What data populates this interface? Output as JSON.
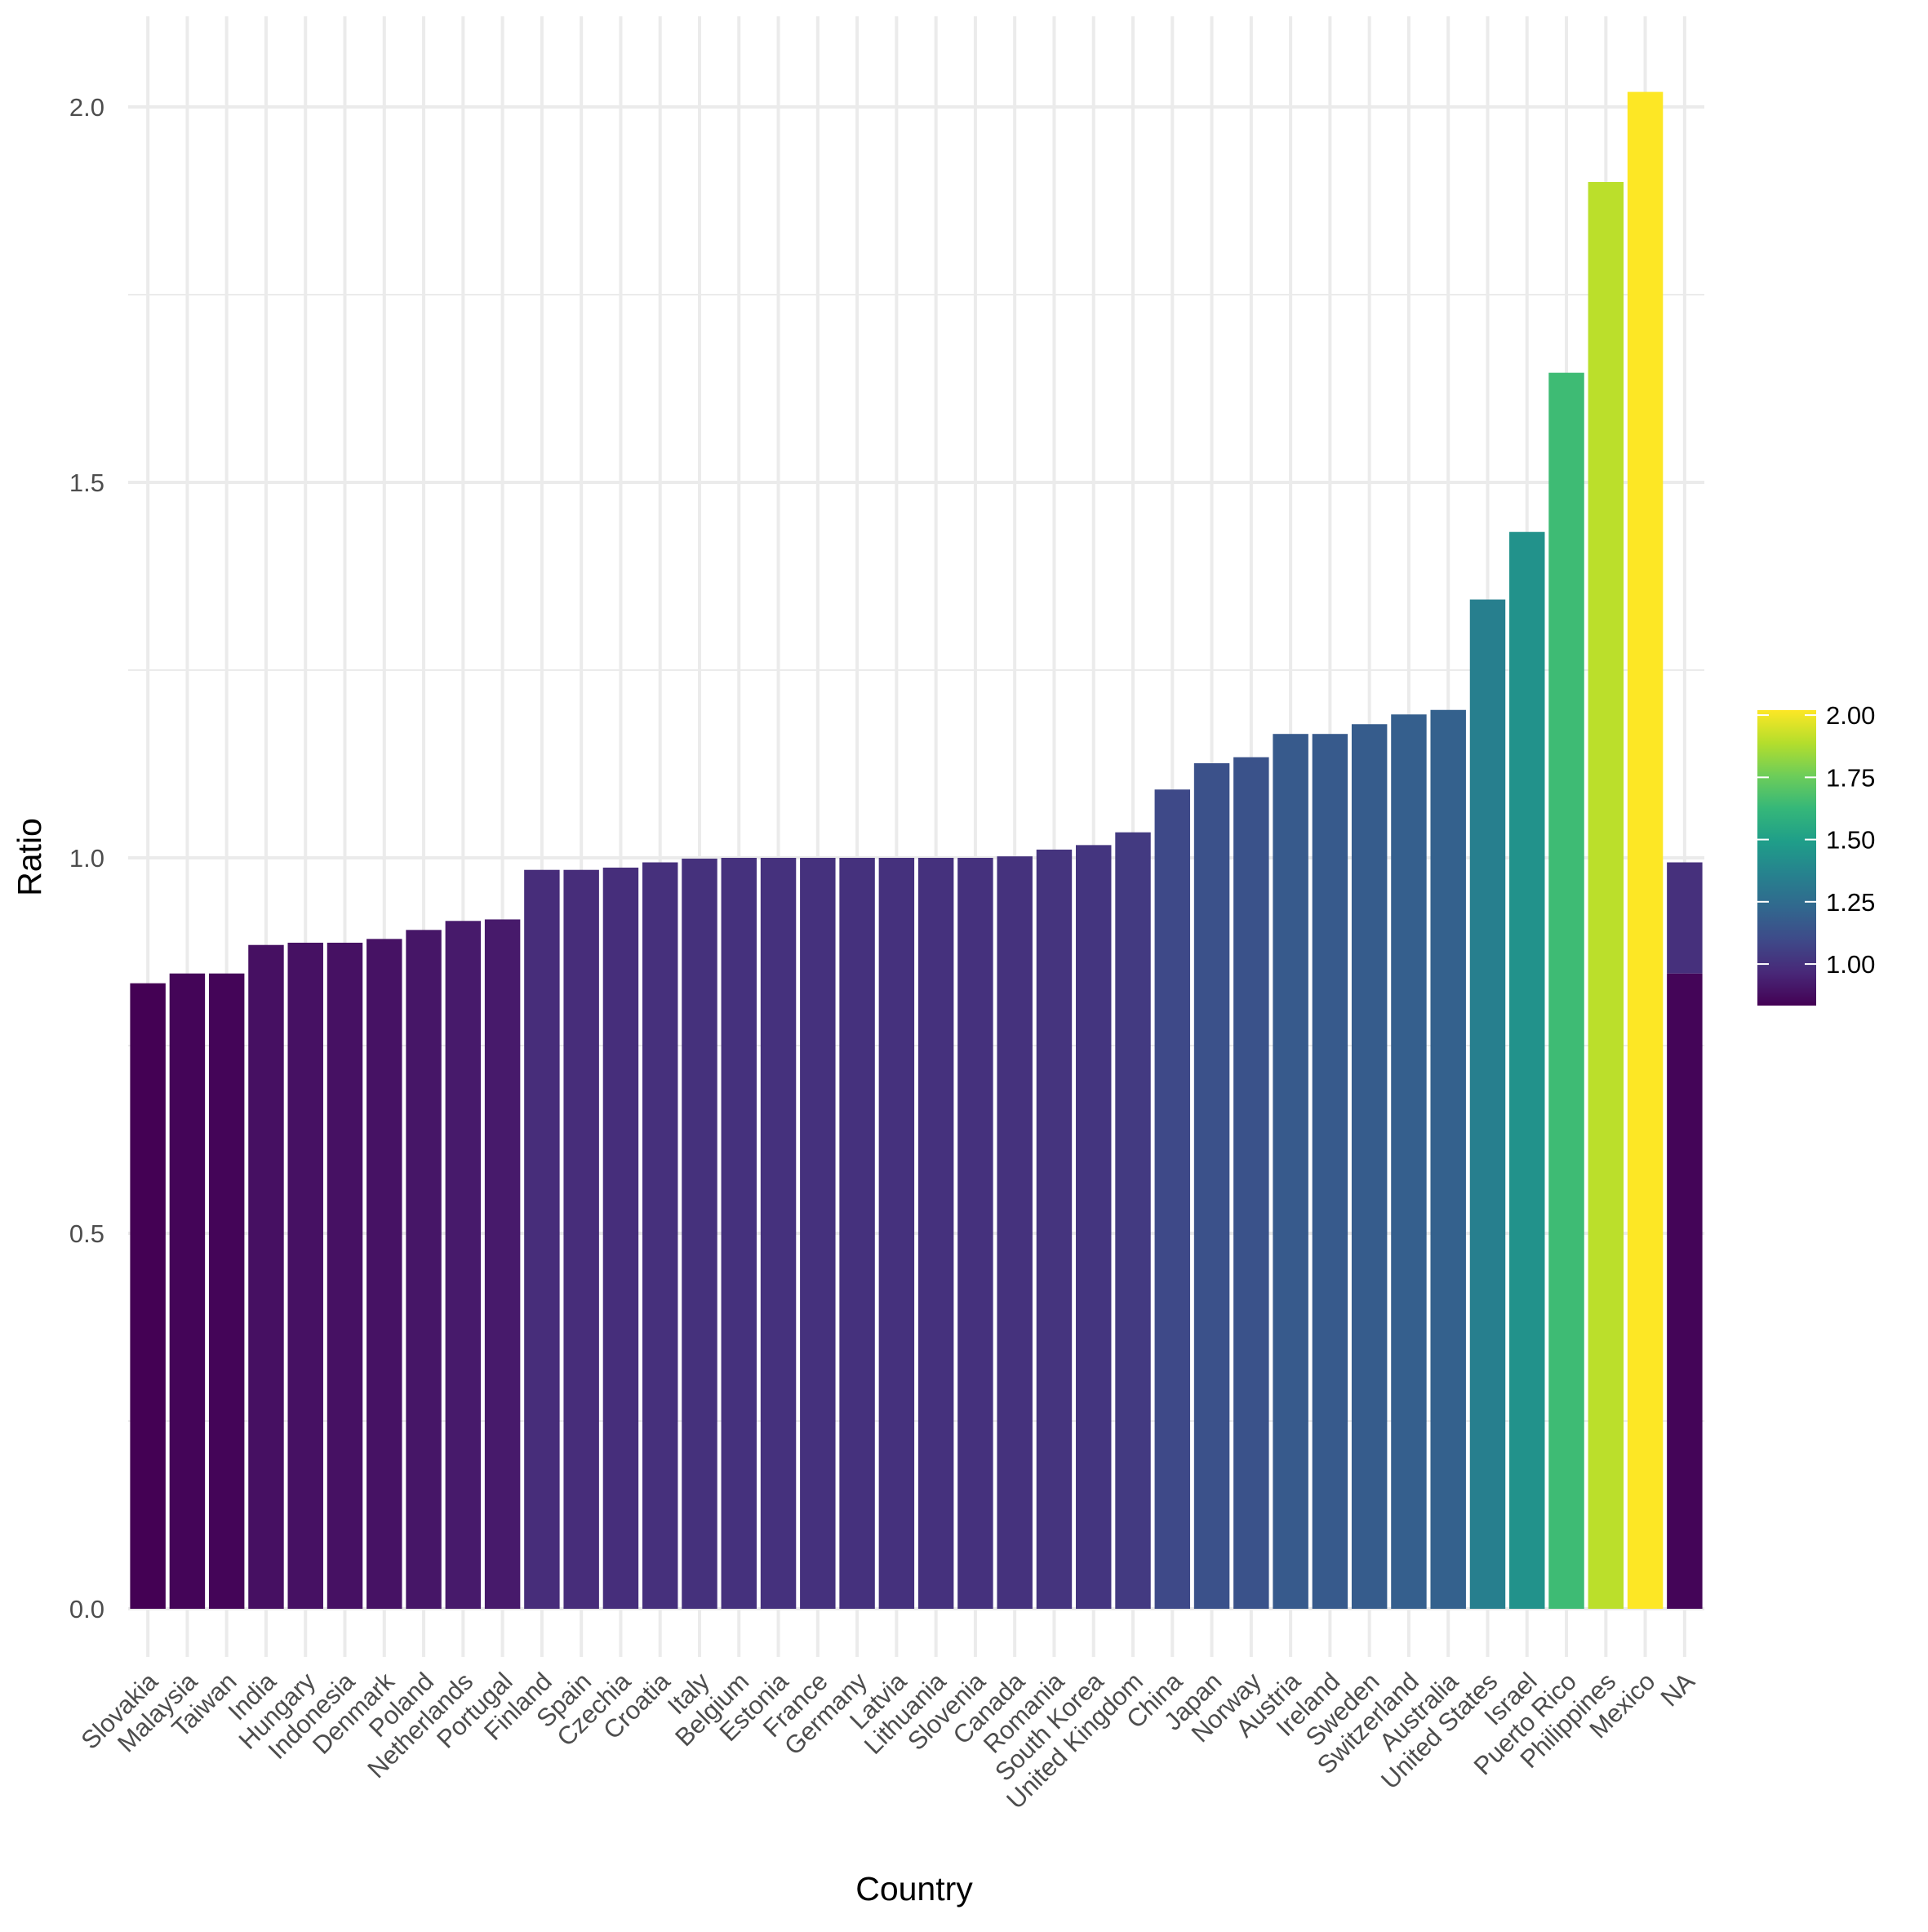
{
  "chart_data": {
    "type": "bar",
    "xlabel": "Country",
    "ylabel": "Ratio",
    "ylim": [
      -0.085,
      2.12
    ],
    "yticks": [
      0.0,
      0.5,
      1.0,
      1.5,
      2.0
    ],
    "ytick_labels": [
      "0.0",
      "0.5",
      "1.0",
      "1.5",
      "2.0"
    ],
    "grid": true,
    "categories": [
      "Slovakia",
      "Malaysia",
      "Taiwan",
      "India",
      "Hungary",
      "Indonesia",
      "Denmark",
      "Poland",
      "Netherlands",
      "Portugal",
      "Finland",
      "Spain",
      "Czechia",
      "Croatia",
      "Italy",
      "Belgium",
      "Estonia",
      "France",
      "Germany",
      "Latvia",
      "Lithuania",
      "Slovenia",
      "Canada",
      "Romania",
      "South Korea",
      "United Kingdom",
      "China",
      "Japan",
      "Norway",
      "Austria",
      "Ireland",
      "Sweden",
      "Switzerland",
      "Australia",
      "United States",
      "Israel",
      "Puerto Rico",
      "Philippines",
      "Mexico",
      "NA"
    ],
    "values": [
      0.833,
      0.846,
      0.846,
      0.884,
      0.887,
      0.887,
      0.892,
      0.904,
      0.916,
      0.918,
      0.984,
      0.984,
      0.987,
      0.994,
      0.999,
      1.0,
      1.0,
      1.0,
      1.0,
      1.0,
      1.0,
      1.0,
      1.002,
      1.011,
      1.017,
      1.034,
      1.091,
      1.126,
      1.134,
      1.165,
      1.165,
      1.178,
      1.191,
      1.197,
      1.344,
      1.434,
      1.646,
      1.9,
      2.02,
      null
    ],
    "na_stack": [
      {
        "value": 0.846,
        "fill": 0.846
      },
      {
        "value": 0.148,
        "fill": 0.994
      }
    ],
    "legend": {
      "position": "right",
      "range": [
        0.833,
        2.02
      ],
      "ticks": [
        1.0,
        1.25,
        1.5,
        1.75,
        2.0
      ],
      "tick_labels": [
        "1.00",
        "1.25",
        "1.50",
        "1.75",
        "2.00"
      ],
      "palette": [
        "#440154",
        "#482878",
        "#3E4A89",
        "#31688E",
        "#26828E",
        "#1F9E89",
        "#35B779",
        "#6DCD59",
        "#B4DE2C",
        "#FDE725"
      ]
    }
  }
}
